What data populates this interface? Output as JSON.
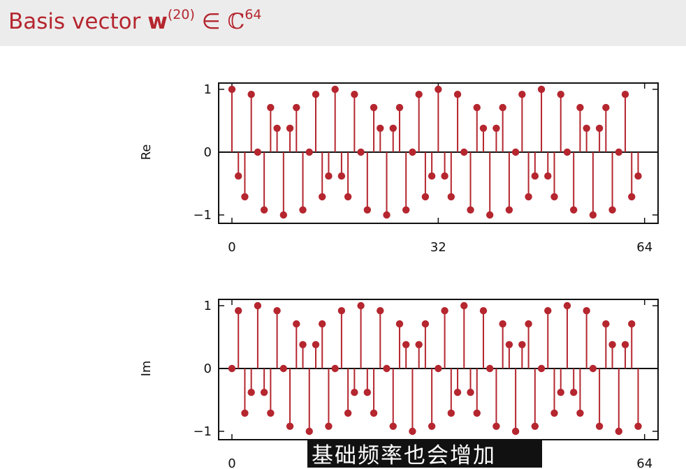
{
  "header": {
    "title_prefix": "Basis vector",
    "vector_symbol": "w",
    "vector_superscript": "(20)",
    "element_of": "∈",
    "set_symbol": "ℂ",
    "set_superscript": "64"
  },
  "colors": {
    "accent": "#b5262f",
    "stem": "#b5262f",
    "header_bg": "#ececec",
    "subtitle_bg": "#111111"
  },
  "subtitle": {
    "text": "基础频率也会增加"
  },
  "chart_data": [
    {
      "type": "stem",
      "ylabel": "Re",
      "xlim": [
        0,
        64
      ],
      "ylim": [
        -1,
        1
      ],
      "xticks": [
        0,
        32,
        64
      ],
      "yticks": [
        1,
        0,
        -1
      ],
      "ytick_labels": [
        "1",
        "0",
        "−1"
      ],
      "x": [
        0,
        1,
        2,
        3,
        4,
        5,
        6,
        7,
        8,
        9,
        10,
        11,
        12,
        13,
        14,
        15,
        16,
        17,
        18,
        19,
        20,
        21,
        22,
        23,
        24,
        25,
        26,
        27,
        28,
        29,
        30,
        31,
        32,
        33,
        34,
        35,
        36,
        37,
        38,
        39,
        40,
        41,
        42,
        43,
        44,
        45,
        46,
        47,
        48,
        49,
        50,
        51,
        52,
        53,
        54,
        55,
        56,
        57,
        58,
        59,
        60,
        61,
        62,
        63
      ],
      "values": [
        1,
        -0.38,
        -0.71,
        0.92,
        0,
        -0.92,
        0.71,
        0.38,
        -1,
        0.38,
        0.71,
        -0.92,
        0,
        0.92,
        -0.71,
        -0.38,
        1,
        -0.38,
        -0.71,
        0.92,
        0,
        -0.92,
        0.71,
        0.38,
        -1,
        0.38,
        0.71,
        -0.92,
        0,
        0.92,
        -0.71,
        -0.38,
        1,
        -0.38,
        -0.71,
        0.92,
        0,
        -0.92,
        0.71,
        0.38,
        -1,
        0.38,
        0.71,
        -0.92,
        0,
        0.92,
        -0.71,
        -0.38,
        1,
        -0.38,
        -0.71,
        0.92,
        0,
        -0.92,
        0.71,
        0.38,
        -1,
        0.38,
        0.71,
        -0.92,
        0,
        0.92,
        -0.71,
        -0.38
      ]
    },
    {
      "type": "stem",
      "ylabel": "Im",
      "xlim": [
        0,
        64
      ],
      "ylim": [
        -1,
        1
      ],
      "xticks": [
        0,
        64
      ],
      "yticks": [
        1,
        0,
        -1
      ],
      "ytick_labels": [
        "1",
        "0",
        "−1"
      ],
      "x": [
        0,
        1,
        2,
        3,
        4,
        5,
        6,
        7,
        8,
        9,
        10,
        11,
        12,
        13,
        14,
        15,
        16,
        17,
        18,
        19,
        20,
        21,
        22,
        23,
        24,
        25,
        26,
        27,
        28,
        29,
        30,
        31,
        32,
        33,
        34,
        35,
        36,
        37,
        38,
        39,
        40,
        41,
        42,
        43,
        44,
        45,
        46,
        47,
        48,
        49,
        50,
        51,
        52,
        53,
        54,
        55,
        56,
        57,
        58,
        59,
        60,
        61,
        62,
        63
      ],
      "values": [
        0,
        0.92,
        -0.71,
        -0.38,
        1,
        -0.38,
        -0.71,
        0.92,
        0,
        -0.92,
        0.71,
        0.38,
        -1,
        0.38,
        0.71,
        -0.92,
        0,
        0.92,
        -0.71,
        -0.38,
        1,
        -0.38,
        -0.71,
        0.92,
        0,
        -0.92,
        0.71,
        0.38,
        -1,
        0.38,
        0.71,
        -0.92,
        0,
        0.92,
        -0.71,
        -0.38,
        1,
        -0.38,
        -0.71,
        0.92,
        0,
        -0.92,
        0.71,
        0.38,
        -1,
        0.38,
        0.71,
        -0.92,
        0,
        0.92,
        -0.71,
        -0.38,
        1,
        -0.38,
        -0.71,
        0.92,
        0,
        -0.92,
        0.71,
        0.38,
        -1,
        0.38,
        0.71,
        -0.92
      ]
    }
  ]
}
